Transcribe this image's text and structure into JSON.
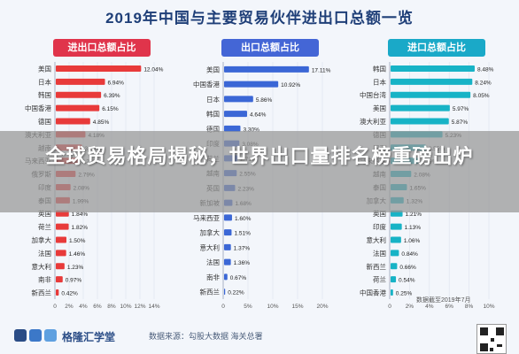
{
  "page": {
    "title": "2019年中国与主要贸易伙伴进出口总额一览",
    "overlay_headline": "全球贸易格局揭秘，世界出口量排名榜重磅出炉",
    "note": "数据截至2019年7月",
    "footer_logo": "格隆汇学堂",
    "footer_source": "数据来源：勾股大数据 海关总署"
  },
  "chart_data": [
    {
      "type": "bar",
      "title": "进出口总额占比",
      "color": "#e83a3a",
      "header_color": "#e0344b",
      "categories": [
        "美国",
        "日本",
        "韩国",
        "中国香港",
        "德国",
        "澳大利亚",
        "越南",
        "马来西亚",
        "俄罗斯",
        "印度",
        "泰国",
        "英国",
        "荷兰",
        "加拿大",
        "法国",
        "意大利",
        "南非",
        "新西兰"
      ],
      "values": [
        12.04,
        6.94,
        6.39,
        6.15,
        4.85,
        4.18,
        3.7,
        3.23,
        2.79,
        2.08,
        1.99,
        1.84,
        1.82,
        1.5,
        1.46,
        1.23,
        0.97,
        0.42
      ],
      "value_labels": [
        "12.04%",
        "6.94%",
        "6.39%",
        "6.15%",
        "4.85%",
        "4.18%",
        "3.70%",
        "3.23%",
        "2.79%",
        "2.08%",
        "1.99%",
        "1.84%",
        "1.82%",
        "1.50%",
        "1.46%",
        "1.23%",
        "0.97%",
        "0.42%"
      ],
      "xlim": [
        0,
        14
      ],
      "xticks": [
        "0",
        "2%",
        "4%",
        "6%",
        "8%",
        "10%",
        "12%",
        "14%"
      ]
    },
    {
      "type": "bar",
      "title": "出口总额占比",
      "color": "#3b67d6",
      "header_color": "#4466d6",
      "categories": [
        "美国",
        "中国香港",
        "日本",
        "韩国",
        "德国",
        "印度",
        "荷兰",
        "越南",
        "英国",
        "新加坡",
        "马来西亚",
        "加拿大",
        "意大利",
        "法国",
        "南非",
        "新西兰"
      ],
      "values": [
        17.11,
        10.92,
        5.86,
        4.64,
        3.3,
        3.08,
        2.71,
        2.55,
        2.23,
        1.68,
        1.6,
        1.51,
        1.37,
        1.36,
        0.67,
        0.22
      ],
      "value_labels": [
        "17.11%",
        "10.92%",
        "5.86%",
        "4.64%",
        "3.30%",
        "3.08%",
        "2.71%",
        "2.55%",
        "2.23%",
        "1.68%",
        "1.60%",
        "1.51%",
        "1.37%",
        "1.36%",
        "0.67%",
        "0.22%"
      ],
      "xlim": [
        0,
        20
      ],
      "xticks": [
        "0",
        "5%",
        "10%",
        "15%",
        "20%"
      ]
    },
    {
      "type": "bar",
      "title": "进口总额占比",
      "color": "#17b3c6",
      "header_color": "#1aa9c8",
      "categories": [
        "韩国",
        "日本",
        "中国台湾",
        "美国",
        "澳大利亚",
        "德国",
        "巴西",
        "马来西亚",
        "越南",
        "泰国",
        "加拿大",
        "英国",
        "印度",
        "意大利",
        "法国",
        "新西兰",
        "荷兰",
        "中国香港"
      ],
      "values": [
        8.48,
        8.24,
        8.05,
        5.97,
        5.87,
        5.23,
        3.55,
        2.79,
        2.08,
        1.65,
        1.32,
        1.21,
        1.13,
        1.06,
        0.84,
        0.66,
        0.54,
        0.25
      ],
      "value_labels": [
        "8.48%",
        "8.24%",
        "8.05%",
        "5.97%",
        "5.87%",
        "5.23%",
        "3.55%",
        "2.79%",
        "2.08%",
        "1.65%",
        "1.32%",
        "1.21%",
        "1.13%",
        "1.06%",
        "0.84%",
        "0.66%",
        "0.54%",
        "0.25%"
      ],
      "xlim": [
        0,
        10
      ],
      "xticks": [
        "0",
        "2%",
        "4%",
        "6%",
        "8%",
        "10%"
      ]
    }
  ]
}
